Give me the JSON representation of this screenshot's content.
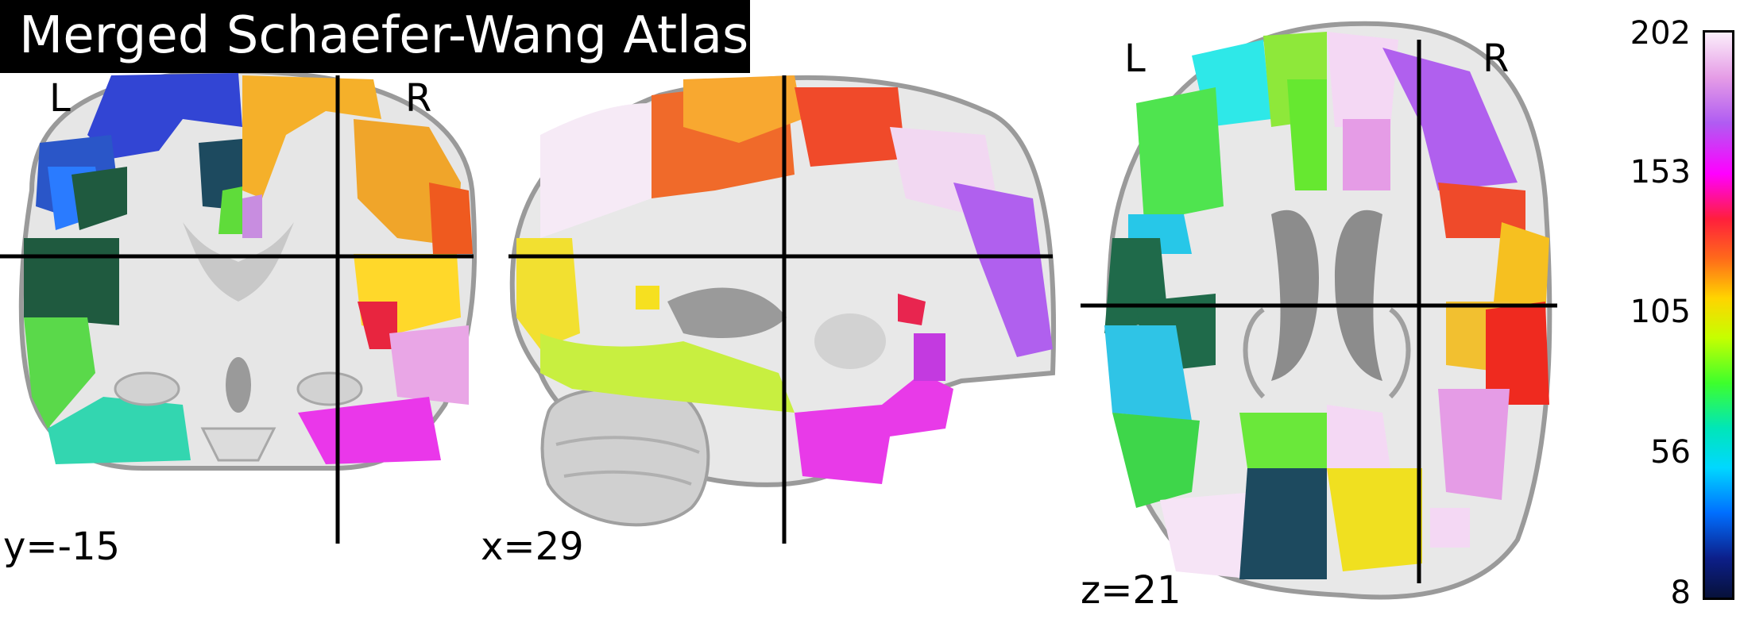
{
  "title": "Merged Schaefer-Wang Atlas",
  "views": {
    "coronal": {
      "hemi_left": "L",
      "hemi_right": "R",
      "coord": "y=-15"
    },
    "sagittal": {
      "coord": "x=29"
    },
    "axial": {
      "hemi_left": "L",
      "hemi_right": "R",
      "coord": "z=21"
    }
  },
  "colorbar": {
    "ticks": [
      "202",
      "153",
      "105",
      "56",
      "8"
    ],
    "colormap": [
      "#fbeefb",
      "#e59ce6",
      "#b05cf2",
      "#ff00ff",
      "#ff1f3c",
      "#ff6a1a",
      "#ffd400",
      "#c6ff00",
      "#3eff2c",
      "#00e6b8",
      "#00d8ff",
      "#006fff",
      "#0c1f8a",
      "#07113a"
    ]
  },
  "palette": {
    "background_gray": "#d9d9d9",
    "brain_gray": "#e9e9e9",
    "dark_gray": "#8c8c8c",
    "cortex_edge": "#9a9a9a"
  }
}
